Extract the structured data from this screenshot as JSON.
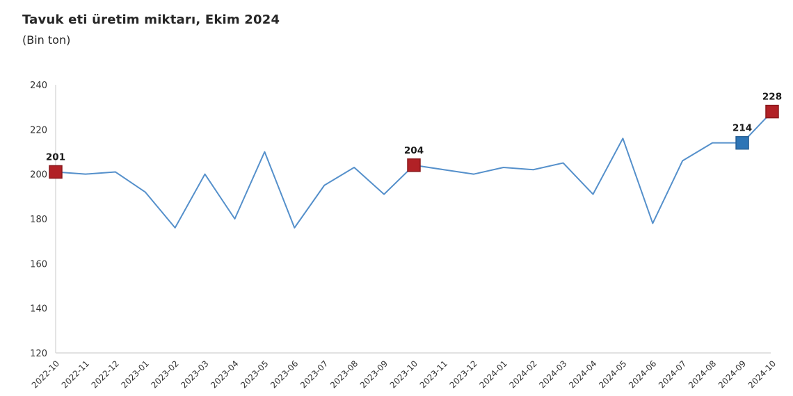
{
  "page": {
    "background": "#ffffff"
  },
  "header": {
    "title": "Tavuk eti üretim miktarı, Ekim 2024",
    "subtitle": "(Bin ton)"
  },
  "chart_data": {
    "type": "line",
    "title": "Tavuk eti üretim miktarı, Ekim 2024",
    "unit_label": "(Bin ton)",
    "categories": [
      "2022-10",
      "2022-11",
      "2022-12",
      "2023-01",
      "2023-02",
      "2023-03",
      "2023-04",
      "2023-05",
      "2023-06",
      "2023-07",
      "2023-08",
      "2023-09",
      "2023-10",
      "2023-11",
      "2023-12",
      "2024-01",
      "2024-02",
      "2024-03",
      "2024-04",
      "2024-05",
      "2024-06",
      "2024-07",
      "2024-08",
      "2024-09",
      "2024-10"
    ],
    "series": [
      {
        "name": "Tavuk eti üretim miktarı (Bin ton)",
        "values": [
          201,
          200,
          201,
          192,
          176,
          200,
          180,
          210,
          176,
          195,
          203,
          191,
          204,
          202,
          200,
          203,
          202,
          205,
          191,
          216,
          178,
          206,
          214,
          214,
          228
        ]
      }
    ],
    "ylim": [
      120,
      240
    ],
    "yticks": [
      "120",
      "140",
      "160",
      "180",
      "200",
      "220",
      "240"
    ],
    "grid": false,
    "legend": "none",
    "line_color": "#5590cb",
    "axis_color": "#d9d9d9",
    "tick_label_color": "#333333",
    "data_label_color": "#1a1a1a",
    "labeled_points": [
      {
        "category": "2022-10",
        "index": 0,
        "value": 201,
        "label": "201",
        "marker_color": "#b12126",
        "marker_stroke": "#8a181c"
      },
      {
        "category": "2023-10",
        "index": 12,
        "value": 204,
        "label": "204",
        "marker_color": "#b12126",
        "marker_stroke": "#8a181c"
      },
      {
        "category": "2024-09",
        "index": 23,
        "value": 214,
        "label": "214",
        "marker_color": "#2e75b6",
        "marker_stroke": "#255e94"
      },
      {
        "category": "2024-10",
        "index": 24,
        "value": 228,
        "label": "228",
        "marker_color": "#b12126",
        "marker_stroke": "#8a181c"
      }
    ]
  }
}
